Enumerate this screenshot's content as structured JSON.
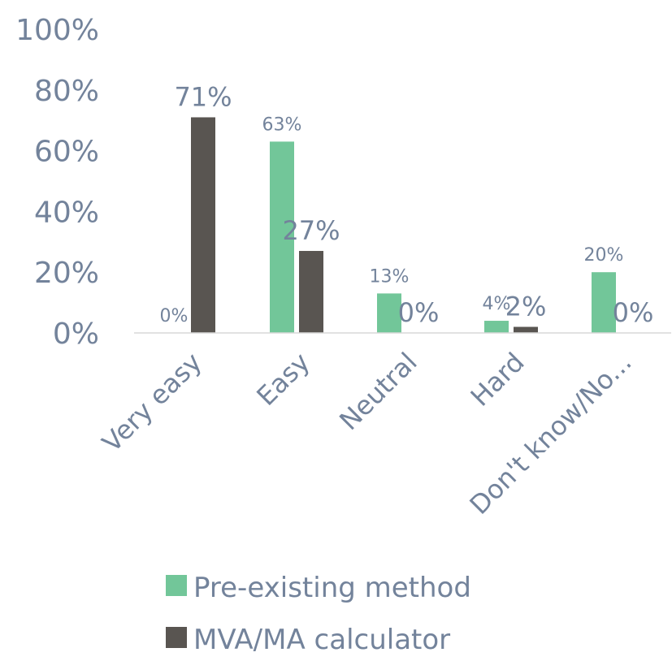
{
  "chart_data": {
    "type": "bar",
    "categories": [
      "Very easy",
      "Easy",
      "Neutral",
      "Hard",
      "Don't know/No..."
    ],
    "series": [
      {
        "name": "Pre-existing method",
        "values": [
          0,
          63,
          13,
          4,
          20
        ],
        "labels": [
          "0%",
          "63%",
          "13%",
          "4%",
          "20%"
        ],
        "color": "#72c699"
      },
      {
        "name": "MVA/MA calculator",
        "values": [
          71,
          27,
          0,
          2,
          0
        ],
        "labels": [
          "71%",
          "27%",
          "0%",
          "2%",
          "0%"
        ],
        "color": "#595551"
      }
    ],
    "yticks": [
      "0%",
      "20%",
      "40%",
      "60%",
      "80%",
      "100%"
    ],
    "ylim": [
      0,
      100
    ],
    "grid": false,
    "legend": "bottom"
  }
}
